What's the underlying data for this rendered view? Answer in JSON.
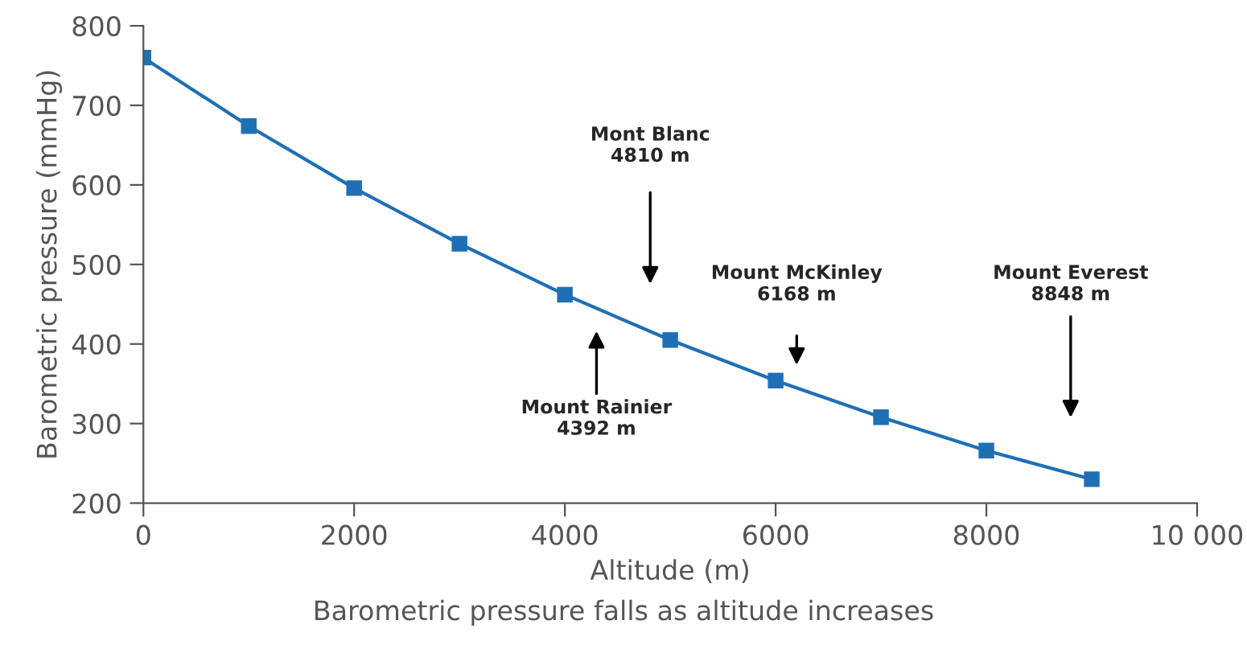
{
  "chart_data": {
    "type": "line",
    "xlabel": "Altitude (m)",
    "ylabel": "Barometric pressure (mmHg)",
    "x": [
      0,
      1000,
      2000,
      3000,
      4000,
      5000,
      6000,
      7000,
      8000,
      9000
    ],
    "series": [
      {
        "color": "#1f6fb5",
        "values": [
          760,
          674,
          596,
          526,
          462,
          405,
          354,
          308,
          266,
          230
        ]
      }
    ],
    "xlim": [
      0,
      10000
    ],
    "xticks": [
      0,
      2000,
      4000,
      6000,
      8000,
      {
        "value": 10000,
        "label": "10 000"
      }
    ],
    "ylim": [
      200,
      800
    ],
    "yticks": [
      200,
      300,
      400,
      500,
      600,
      700,
      800
    ],
    "marker": "square",
    "line_style": "solid",
    "grid": false,
    "legend": false,
    "annotations": [
      "Mont Blanc\n4810 m",
      "Mount Rainier\n4392 m",
      "Mount McKinley\n6168 m",
      "Mount Everest\n8848 m",
      "Barometric pressure falls as altitude increases"
    ]
  }
}
